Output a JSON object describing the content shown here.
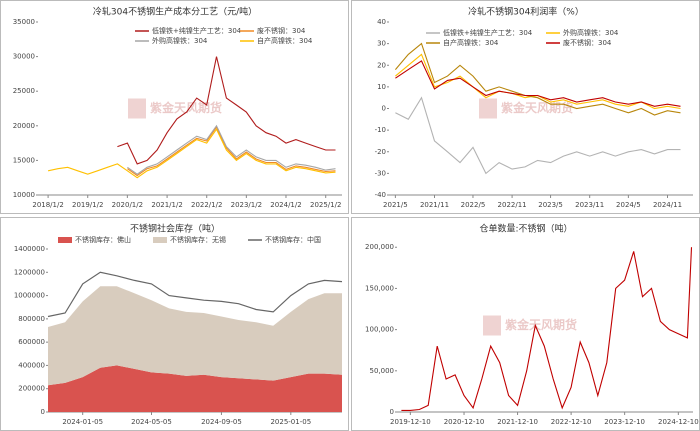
{
  "chart_data": [
    {
      "type": "line",
      "title": "冷轧304不锈钢生产成本分工艺（元/吨）",
      "watermark": "紫金天风期货",
      "x": [
        "2018/1/2",
        "2018/4/2",
        "2018/7/2",
        "2018/10/2",
        "2019/1/2",
        "2019/4/2",
        "2019/7/2",
        "2019/10/2",
        "2020/1/2",
        "2020/4/2",
        "2020/7/2",
        "2020/10/2",
        "2021/1/2",
        "2021/4/2",
        "2021/7/2",
        "2021/10/2",
        "2022/1/2",
        "2022/4/2",
        "2022/7/2",
        "2022/10/2",
        "2023/1/2",
        "2023/4/2",
        "2023/7/2",
        "2023/10/2",
        "2024/1/2",
        "2024/4/2",
        "2024/7/2",
        "2024/10/2",
        "2025/1/2",
        "2025/4/2"
      ],
      "xlim": [
        "2017/10/1",
        "2025/6/1"
      ],
      "xticks": [
        "2018/1/2",
        "2019/1/2",
        "2020/1/2",
        "2021/1/2",
        "2022/1/2",
        "2023/1/2",
        "2024/1/2",
        "2025/1/2"
      ],
      "ylim": [
        10000,
        35000
      ],
      "yticks": [
        10000,
        15000,
        20000,
        25000,
        30000,
        35000
      ],
      "series": [
        {
          "name": "低镍铁+纯镍生产工艺：304",
          "color": "#b01c1c",
          "values": [
            null,
            null,
            null,
            null,
            null,
            null,
            null,
            17000,
            17500,
            14500,
            15000,
            16500,
            19000,
            21000,
            22000,
            24000,
            23000,
            30000,
            24000,
            23000,
            22000,
            20000,
            19000,
            18500,
            17500,
            18000,
            17500,
            17000,
            16500,
            16500
          ]
        },
        {
          "name": "废不锈钢：304",
          "color": "#f08a24",
          "values": [
            null,
            null,
            null,
            null,
            null,
            null,
            null,
            null,
            13800,
            12800,
            13800,
            14200,
            15200,
            16200,
            17200,
            18200,
            17800,
            19800,
            16800,
            15200,
            16200,
            15200,
            14700,
            14700,
            13700,
            14200,
            14000,
            13700,
            13400,
            13500
          ]
        },
        {
          "name": "外购高镍铁：304",
          "color": "#a6a6a6",
          "values": [
            null,
            null,
            null,
            null,
            null,
            null,
            null,
            null,
            14000,
            13000,
            14000,
            14500,
            15500,
            16500,
            17500,
            18500,
            18000,
            20000,
            17000,
            15500,
            16500,
            15500,
            15000,
            15000,
            14000,
            14500,
            14300,
            14000,
            13600,
            13800
          ]
        },
        {
          "name": "自产高镍铁：304",
          "color": "#ffc000",
          "values": [
            13500,
            13800,
            14000,
            13500,
            13000,
            13500,
            14000,
            14500,
            13500,
            12500,
            13500,
            14000,
            15000,
            16000,
            17000,
            18000,
            17500,
            19500,
            16500,
            15000,
            16000,
            15000,
            14500,
            14500,
            13500,
            14000,
            13800,
            13500,
            13200,
            13300
          ]
        }
      ]
    },
    {
      "type": "line",
      "title": "冷轧不锈钢304利润率（%）",
      "watermark": "紫金天风期货",
      "x": [
        "2021/5",
        "2021/7",
        "2021/9",
        "2021/11",
        "2022/1",
        "2022/3",
        "2022/5",
        "2022/7",
        "2022/9",
        "2022/11",
        "2023/1",
        "2023/3",
        "2023/5",
        "2023/7",
        "2023/9",
        "2023/11",
        "2024/1",
        "2024/3",
        "2024/5",
        "2024/7",
        "2024/9",
        "2024/11",
        "2025/1"
      ],
      "xlim": [
        "2021/4",
        "2025/3"
      ],
      "xticks": [
        "2021/5",
        "2021/11",
        "2022/5",
        "2022/11",
        "2023/5",
        "2023/11",
        "2024/5",
        "2024/11"
      ],
      "ylim": [
        -40,
        40
      ],
      "yticks": [
        -40,
        -30,
        -20,
        -10,
        0,
        10,
        20,
        30,
        40
      ],
      "series": [
        {
          "name": "低镍铁+纯镍生产工艺：304",
          "color": "#b3b3b3",
          "values": [
            -2,
            -5,
            5,
            -15,
            -20,
            -25,
            -18,
            -30,
            -25,
            -28,
            -27,
            -24,
            -25,
            -22,
            -20,
            -22,
            -20,
            -22,
            -20,
            -19,
            -21,
            -19,
            -19
          ]
        },
        {
          "name": "外购高镍铁：304",
          "color": "#ffc000",
          "values": [
            15,
            20,
            25,
            10,
            12,
            15,
            10,
            5,
            8,
            7,
            5,
            6,
            3,
            4,
            2,
            3,
            4,
            2,
            1,
            3,
            0,
            1,
            0
          ]
        },
        {
          "name": "自产高镍铁：304",
          "color": "#b8860b",
          "values": [
            18,
            25,
            30,
            12,
            15,
            20,
            15,
            8,
            10,
            8,
            6,
            5,
            2,
            2,
            0,
            1,
            2,
            0,
            -2,
            0,
            -3,
            -1,
            -2
          ]
        },
        {
          "name": "废不锈钢：304",
          "color": "#c00000",
          "values": [
            14,
            18,
            22,
            9,
            13,
            14,
            10,
            6,
            8,
            7,
            6,
            6,
            4,
            5,
            3,
            4,
            5,
            3,
            2,
            3,
            1,
            2,
            1
          ]
        }
      ]
    },
    {
      "type": "area",
      "title": "不锈钢社会库存（吨）",
      "watermark": "紫金天风期货",
      "x": [
        "2023-11-05",
        "2023-12-05",
        "2024-01-05",
        "2024-02-05",
        "2024-03-05",
        "2024-04-05",
        "2024-05-05",
        "2024-06-05",
        "2024-07-05",
        "2024-08-05",
        "2024-09-05",
        "2024-10-05",
        "2024-11-05",
        "2024-12-05",
        "2025-01-05",
        "2025-02-05",
        "2025-03-05",
        "2025-04-05"
      ],
      "xlim": [
        "2023-11-05",
        "2025-04-05"
      ],
      "xticks": [
        "2024-01-05",
        "2024-05-05",
        "2024-09-05",
        "2025-01-05"
      ],
      "ylim": [
        0,
        1400000
      ],
      "yticks": [
        0,
        200000,
        400000,
        600000,
        800000,
        1000000,
        1200000,
        1400000
      ],
      "series": [
        {
          "name": "不锈钢库存：佛山",
          "color": "#d9534f",
          "mark": "area",
          "values": [
            230000,
            250000,
            300000,
            380000,
            400000,
            370000,
            340000,
            330000,
            310000,
            320000,
            300000,
            290000,
            280000,
            270000,
            300000,
            330000,
            330000,
            320000
          ]
        },
        {
          "name": "不锈钢库存：无锡",
          "color": "#d8ccbe",
          "mark": "area",
          "values": [
            500000,
            520000,
            650000,
            700000,
            680000,
            650000,
            620000,
            560000,
            550000,
            530000,
            520000,
            500000,
            490000,
            470000,
            560000,
            640000,
            690000,
            700000
          ]
        },
        {
          "name": "不锈钢库存：中国",
          "color": "#666666",
          "mark": "line",
          "values": [
            820000,
            850000,
            1100000,
            1200000,
            1170000,
            1130000,
            1100000,
            1000000,
            980000,
            960000,
            950000,
            930000,
            880000,
            860000,
            1000000,
            1100000,
            1130000,
            1120000
          ]
        }
      ]
    },
    {
      "type": "line",
      "title": "仓单数量:不锈钢（吨）",
      "watermark": "紫金天风期货",
      "x": [
        "2019-10-10",
        "2019-12-10",
        "2020-02-10",
        "2020-04-10",
        "2020-06-10",
        "2020-08-10",
        "2020-10-10",
        "2020-12-10",
        "2021-02-10",
        "2021-04-10",
        "2021-06-10",
        "2021-08-10",
        "2021-10-10",
        "2021-12-10",
        "2022-02-10",
        "2022-04-10",
        "2022-06-10",
        "2022-08-10",
        "2022-10-10",
        "2022-12-10",
        "2023-02-10",
        "2023-04-10",
        "2023-06-10",
        "2023-08-10",
        "2023-10-10",
        "2023-12-10",
        "2024-02-10",
        "2024-04-10",
        "2024-06-10",
        "2024-08-10",
        "2024-10-10",
        "2024-12-10",
        "2025-02-10",
        "2025-03-10"
      ],
      "xlim": [
        "2019-09-10",
        "2025-03-20"
      ],
      "xticks": [
        "2019-12-10",
        "2020-12-10",
        "2021-12-10",
        "2022-12-10",
        "2023-12-10",
        "2024-12-10"
      ],
      "ylim": [
        0,
        210000
      ],
      "yticks": [
        0,
        {
          "value": 50000,
          "label": "50,000"
        },
        {
          "value": 100000,
          "label": "100,000"
        },
        {
          "value": 150000,
          "label": "150,000"
        },
        {
          "value": 200000,
          "label": "200,000"
        }
      ],
      "color": "#c00000",
      "values": [
        2000,
        2000,
        3000,
        8000,
        80000,
        40000,
        45000,
        20000,
        5000,
        40000,
        80000,
        60000,
        20000,
        8000,
        50000,
        105000,
        80000,
        40000,
        5000,
        30000,
        85000,
        60000,
        20000,
        60000,
        150000,
        160000,
        195000,
        140000,
        150000,
        110000,
        100000,
        95000,
        90000,
        200000
      ]
    }
  ]
}
